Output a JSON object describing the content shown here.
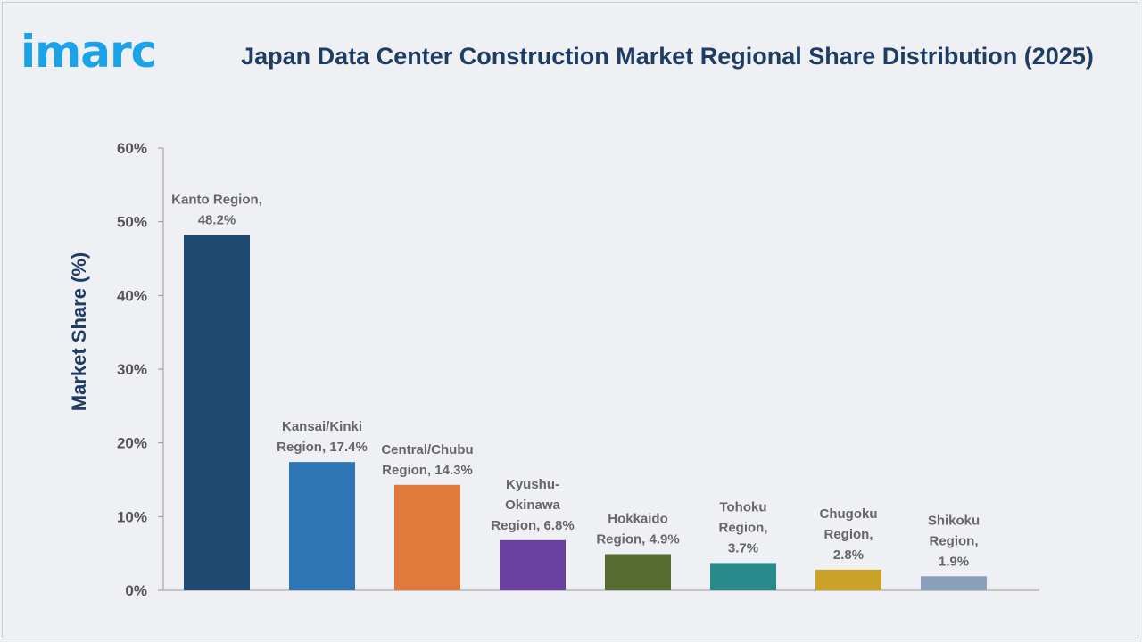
{
  "logo": {
    "text": "imarc",
    "color": "#1aa3e8"
  },
  "chart_data": {
    "type": "bar",
    "title": "Japan Data Center Construction Market Regional Share Distribution (2025)",
    "ylabel": "Market Share (%)",
    "xlabel": "",
    "ylim": [
      0,
      60
    ],
    "yticks": [
      "0%",
      "10%",
      "20%",
      "30%",
      "40%",
      "50%",
      "60%"
    ],
    "yticks_values": [
      0,
      10,
      20,
      30,
      40,
      50,
      60
    ],
    "grid": false,
    "categories": [
      "Kanto Region",
      "Kansai/Kinki Region",
      "Central/Chubu Region",
      "Kyushu-Okinawa Region",
      "Hokkaido Region",
      "Tohoku Region",
      "Chugoku Region",
      "Shikoku Region"
    ],
    "values": [
      48.2,
      17.4,
      14.3,
      6.8,
      4.9,
      3.7,
      2.8,
      1.9
    ],
    "colors": [
      "#1e4a72",
      "#2e75b6",
      "#e07a3b",
      "#6b3fa0",
      "#556b2f",
      "#2a8a8a",
      "#c9a227",
      "#8a9fba"
    ],
    "data_labels": [
      [
        "Kanto Region,",
        "48.2%"
      ],
      [
        "Kansai/Kinki",
        "Region, 17.4%"
      ],
      [
        "Central/Chubu",
        "Region, 14.3%"
      ],
      [
        "Kyushu-",
        "Okinawa",
        "Region, 6.8%"
      ],
      [
        "Hokkaido",
        "Region, 4.9%"
      ],
      [
        "Tohoku",
        "Region,",
        "3.7%"
      ],
      [
        "Chugoku",
        "Region,",
        "2.8%"
      ],
      [
        "Shikoku",
        "Region,",
        "1.9%"
      ]
    ]
  }
}
